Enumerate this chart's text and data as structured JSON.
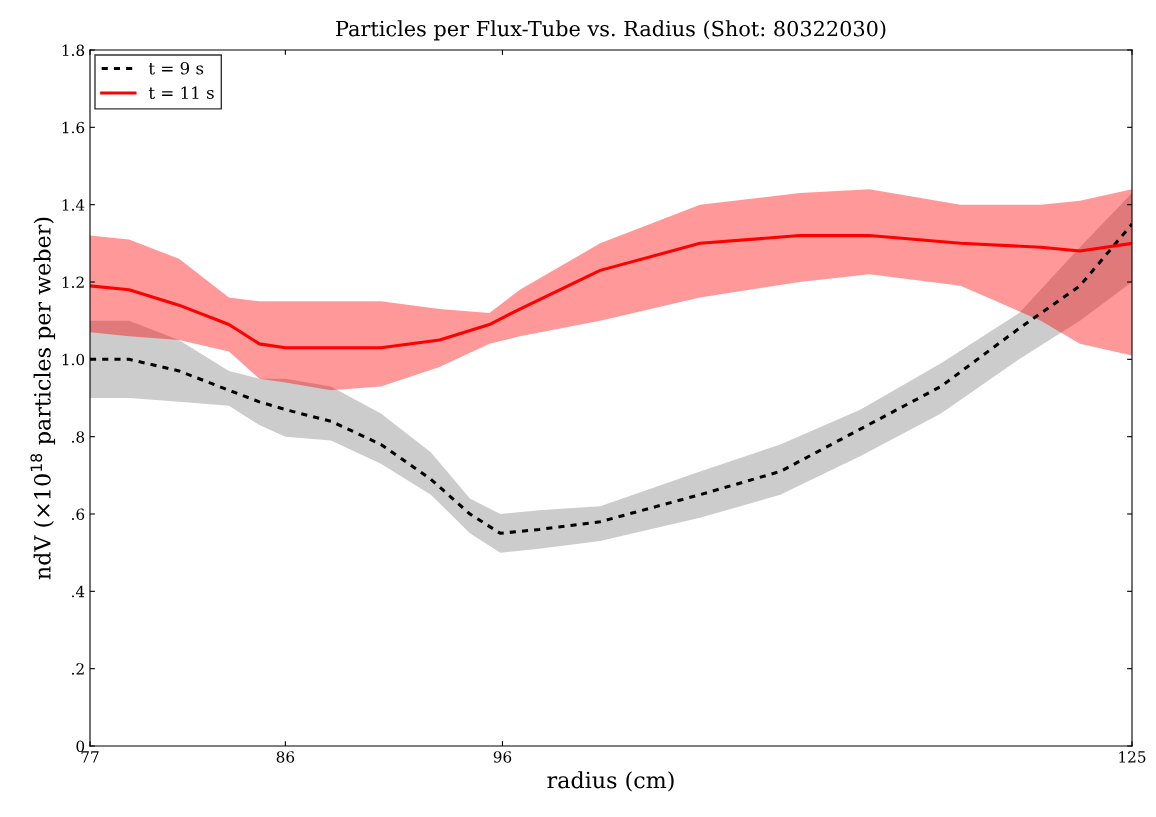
{
  "chart_data": {
    "type": "line",
    "title": "Particles per Flux-Tube vs. Radius (Shot: 80322030)",
    "xlabel": "radius (cm)",
    "ylabel": "ndV (×10$^{18}$ particles per weber)",
    "xlim": [
      77,
      125
    ],
    "xticks": [
      77,
      86,
      96,
      125
    ],
    "ylim": [
      0,
      1.8
    ],
    "yticks": [
      0,
      {
        "value": 0.2,
        "label": ".2"
      },
      {
        "value": 0.4,
        "label": ".4"
      },
      {
        "value": 0.6,
        "label": ".6"
      },
      {
        "value": 0.8,
        "label": ".8"
      },
      {
        "value": 1.0,
        "label": "1.0"
      },
      {
        "value": 1.2,
        "label": "1.2"
      },
      {
        "value": 1.4,
        "label": "1.4"
      },
      {
        "value": 1.6,
        "label": "1.6"
      },
      {
        "value": 1.8,
        "label": "1.8"
      }
    ],
    "grid": false,
    "legend": "top left",
    "marker": "none",
    "series": [
      {
        "name": "t = 9 s",
        "color": "#000000",
        "line_style": "dotted",
        "x": [
          77,
          78.8,
          81.1,
          83.4,
          84.8,
          86,
          88.1,
          90.4,
          92.7,
          94.5,
          95.9,
          97.7,
          100.5,
          105.1,
          108.8,
          112.5,
          116.2,
          119.8,
          122.6,
          125
        ],
        "values": [
          1.0,
          1.0,
          0.97,
          0.92,
          0.89,
          0.87,
          0.84,
          0.78,
          0.69,
          0.6,
          0.55,
          0.56,
          0.58,
          0.65,
          0.71,
          0.82,
          0.93,
          1.08,
          1.19,
          1.35
        ],
        "upper": [
          1.1,
          1.1,
          1.05,
          0.97,
          0.95,
          0.95,
          0.93,
          0.86,
          0.76,
          0.64,
          0.6,
          0.61,
          0.62,
          0.71,
          0.78,
          0.87,
          0.99,
          1.12,
          1.29,
          1.43
        ],
        "lower": [
          0.9,
          0.9,
          0.89,
          0.88,
          0.83,
          0.8,
          0.79,
          0.73,
          0.65,
          0.55,
          0.5,
          0.51,
          0.53,
          0.59,
          0.65,
          0.75,
          0.86,
          1.0,
          1.1,
          1.2
        ]
      },
      {
        "name": "t = 11 s",
        "color": "#ff0000",
        "line_style": "solid",
        "x": [
          77,
          78.8,
          81.1,
          83.4,
          84.8,
          86,
          88.1,
          90.4,
          93.1,
          95.4,
          96.8,
          100.5,
          105.1,
          109.7,
          112.9,
          117.1,
          120.8,
          122.6,
          125
        ],
        "values": [
          1.19,
          1.18,
          1.14,
          1.09,
          1.04,
          1.03,
          1.03,
          1.03,
          1.05,
          1.09,
          1.13,
          1.23,
          1.3,
          1.32,
          1.32,
          1.3,
          1.29,
          1.28,
          1.3
        ],
        "upper": [
          1.32,
          1.31,
          1.26,
          1.16,
          1.15,
          1.15,
          1.15,
          1.15,
          1.13,
          1.12,
          1.18,
          1.3,
          1.4,
          1.43,
          1.44,
          1.4,
          1.4,
          1.41,
          1.44
        ],
        "lower": [
          1.07,
          1.06,
          1.05,
          1.02,
          0.95,
          0.94,
          0.92,
          0.93,
          0.98,
          1.04,
          1.06,
          1.1,
          1.16,
          1.2,
          1.22,
          1.19,
          1.1,
          1.04,
          1.01
        ]
      }
    ]
  }
}
